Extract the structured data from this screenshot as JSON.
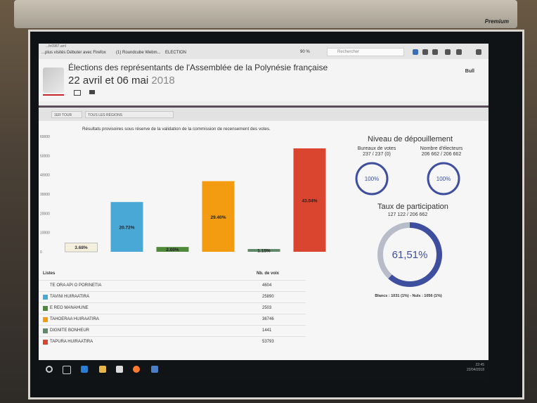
{
  "screen_brand": "Premium",
  "browser": {
    "url_fragment": "...fn0987.aml",
    "bookmarks": [
      "...plus visités",
      "Débuter avec Firefox",
      "(1) Roundcube Webm...",
      "ELECTION"
    ],
    "zoom": "90 %",
    "search_placeholder": "Rechercher"
  },
  "header": {
    "title": "Élections des représentants de l'Assemblée de la Polynésie française",
    "date_main": "22 avril et 06 mai",
    "date_year": "2018",
    "corner_label": "Bull"
  },
  "filters": {
    "round": "1ER TOUR",
    "region": "TOUS LES RÉGIONS"
  },
  "note": "Résultats provisoires sous réserve de la validation de la commission de recensement des votes.",
  "chart_data": {
    "type": "bar",
    "categories": [
      "TE ORA API O PORINETIA",
      "TAVINI HUIRAATIRA",
      "E REO MANAHUNE",
      "TAHOERAA HUIRAATIRA",
      "DIGNITE BONHEUR",
      "TAPURA HUIRAATIRA"
    ],
    "values": [
      4604,
      25890,
      2503,
      36746,
      1441,
      53793
    ],
    "labels": [
      "3.68%",
      "20.72%",
      "2.00%",
      "29.40%",
      "1.15%",
      "43.04%"
    ],
    "colors": [
      "#f5f0dc",
      "#4aa8d6",
      "#4f8a3a",
      "#f39c12",
      "#5e8a6a",
      "#d9452f"
    ],
    "ylim": [
      0,
      60000
    ],
    "yticks": [
      "0",
      "10000",
      "20000",
      "30000",
      "40000",
      "50000",
      "60000"
    ]
  },
  "table": {
    "col_list": "Listes",
    "col_votes": "Nb. de voix",
    "rows": [
      {
        "name": "TE ORA API O PORINETIA",
        "votes": "4604",
        "color": "#f5f0dc"
      },
      {
        "name": "TAVINI HUIRAATIRA",
        "votes": "25890",
        "color": "#4aa8d6"
      },
      {
        "name": "E REO MANAHUNE",
        "votes": "2503",
        "color": "#4f8a3a"
      },
      {
        "name": "TAHOERAA HUIRAATIRA",
        "votes": "36746",
        "color": "#f39c12"
      },
      {
        "name": "DIGNITE BONHEUR",
        "votes": "1441",
        "color": "#5e8a6a"
      },
      {
        "name": "TAPURA HUIRAATIRA",
        "votes": "53793",
        "color": "#d9452f"
      }
    ]
  },
  "depouillement": {
    "title": "Niveau de dépouillement",
    "bureaux_label": "Bureaux de votes",
    "bureaux_value": "237 / 237 (0)",
    "bureaux_pct": "100%",
    "electeurs_label": "Nombre d'électeurs",
    "electeurs_value": "206 662 / 206 662",
    "electeurs_pct": "100%"
  },
  "participation": {
    "title": "Taux de participation",
    "value": "127 122 / 206 662",
    "pct_text": "61,51%",
    "pct": 61.51,
    "blancs_nuls": "Blancs : 1031 (1%) - Nuls : 1056 (1%)"
  },
  "taskbar": {
    "time": "22:45",
    "date": "22/04/2018"
  }
}
